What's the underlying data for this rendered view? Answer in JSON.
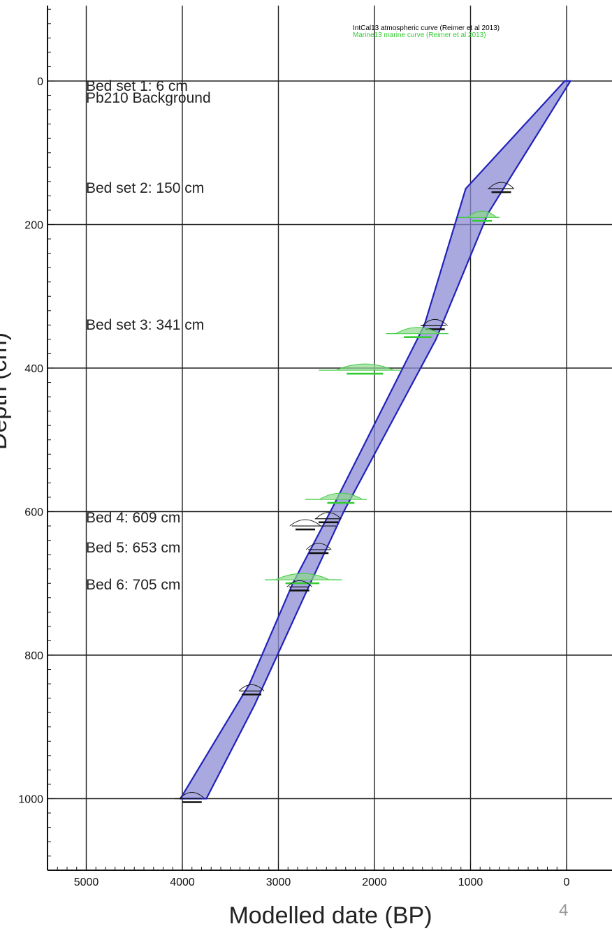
{
  "chart_data": {
    "type": "line",
    "title": "",
    "xlabel": "Modelled date (BP)",
    "ylabel": "Depth (cm)",
    "xlim": [
      5400,
      -50
    ],
    "ylim": [
      1100,
      -100
    ],
    "xticks": [
      5000,
      4000,
      3000,
      2000,
      1000,
      0
    ],
    "yticks": [
      0,
      200,
      400,
      600,
      800,
      1000
    ],
    "grid": true,
    "legend": [
      {
        "label": "IntCal13 atmospheric curve (Reimer et al 2013)",
        "color": "#000000"
      },
      {
        "label": "Marine13 marine curve (Reimer et al 2013)",
        "color": "#33cc33"
      }
    ],
    "bed_annotations": [
      {
        "text": "Bed set 1: 6 cm",
        "depth": 6
      },
      {
        "text": "Pb210 Background",
        "depth": 22
      },
      {
        "text": "Bed set 2: 150 cm",
        "depth": 150
      },
      {
        "text": "Bed set 3: 341 cm",
        "depth": 341
      },
      {
        "text": "Bed 4: 609 cm",
        "depth": 609
      },
      {
        "text": "Bed 5: 653 cm",
        "depth": 653
      },
      {
        "text": "Bed 6: 705 cm",
        "depth": 705
      }
    ],
    "model_envelope": {
      "color": "#2222bb",
      "fill": "#8c8cd6",
      "older_bound": [
        [
          20,
          0
        ],
        [
          1050,
          150
        ],
        [
          1480,
          340
        ],
        [
          2420,
          590
        ],
        [
          2850,
          700
        ],
        [
          3300,
          840
        ],
        [
          4020,
          1000
        ]
      ],
      "younger_bound": [
        [
          -40,
          0
        ],
        [
          820,
          185
        ],
        [
          1360,
          360
        ],
        [
          2320,
          600
        ],
        [
          2720,
          715
        ],
        [
          3250,
          870
        ],
        [
          3750,
          1000
        ]
      ]
    },
    "dated_samples": [
      {
        "curve": "IntCal13",
        "age": 680,
        "depth": 150,
        "range": [
          550,
          820
        ]
      },
      {
        "curve": "Marine13",
        "age": 880,
        "depth": 190,
        "range": [
          700,
          1130
        ]
      },
      {
        "curve": "IntCal13",
        "age": 1370,
        "depth": 341,
        "range": [
          1260,
          1520
        ]
      },
      {
        "curve": "Marine13",
        "age": 1550,
        "depth": 352,
        "range": [
          1230,
          1880
        ]
      },
      {
        "curve": "Marine13",
        "age": 2100,
        "depth": 403,
        "range": [
          1720,
          2580
        ]
      },
      {
        "curve": "Marine13",
        "age": 2350,
        "depth": 583,
        "range": [
          2080,
          2720
        ]
      },
      {
        "curve": "IntCal13",
        "age": 2480,
        "depth": 610,
        "range": [
          2350,
          2620
        ]
      },
      {
        "curve": "IntCal13",
        "age": 2720,
        "depth": 620,
        "range": [
          2400,
          2860
        ]
      },
      {
        "curve": "IntCal13",
        "age": 2580,
        "depth": 653,
        "range": [
          2460,
          2690
        ]
      },
      {
        "curve": "Marine13",
        "age": 2750,
        "depth": 695,
        "range": [
          2340,
          3140
        ]
      },
      {
        "curve": "IntCal13",
        "age": 2780,
        "depth": 705,
        "range": [
          2680,
          2890
        ]
      },
      {
        "curve": "IntCal13",
        "age": 3280,
        "depth": 850,
        "range": [
          3180,
          3400
        ]
      },
      {
        "curve": "IntCal13",
        "age": 3900,
        "depth": 1000,
        "range": [
          3800,
          4080
        ]
      }
    ]
  },
  "page_number": "4"
}
